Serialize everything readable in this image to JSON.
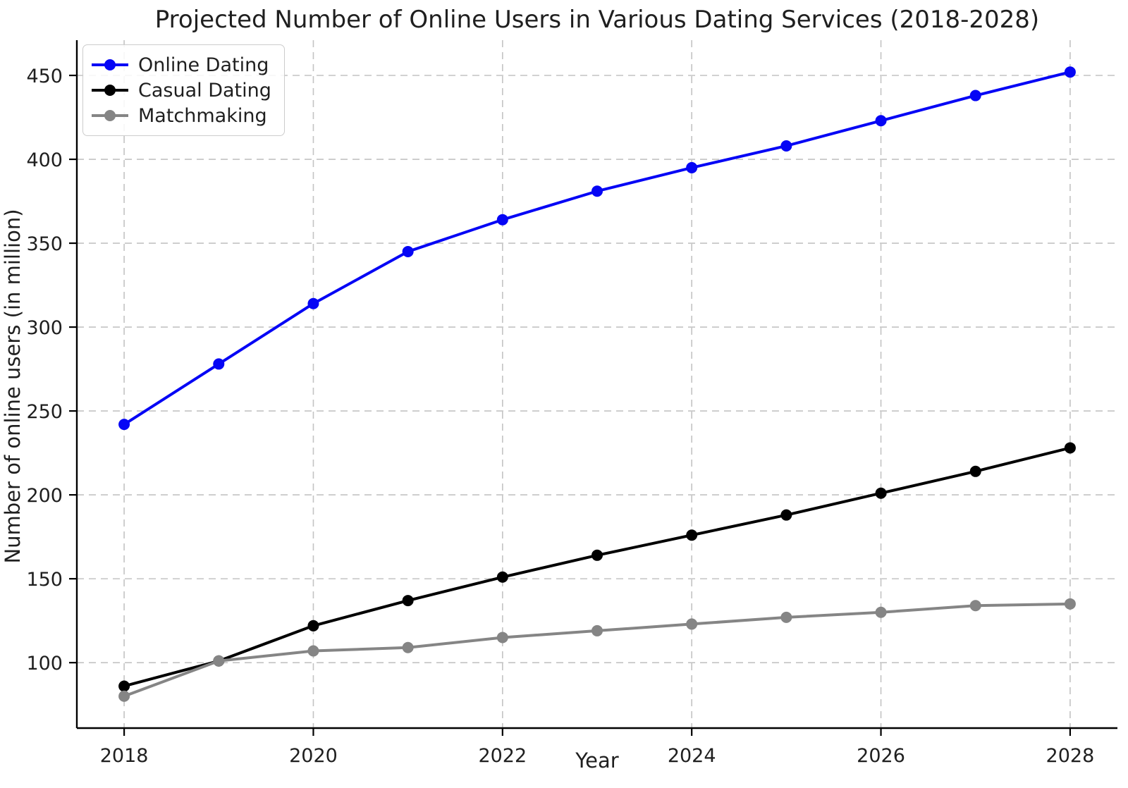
{
  "chart_data": {
    "type": "line",
    "title": "Projected Number of Online Users in Various Dating Services (2018-2028)",
    "xlabel": "Year",
    "ylabel": "Number of online users (in million)",
    "x": [
      2018,
      2019,
      2020,
      2021,
      2022,
      2023,
      2024,
      2025,
      2026,
      2027,
      2028
    ],
    "series": [
      {
        "name": "Online Dating",
        "color": "#0505f5",
        "values": [
          242,
          278,
          314,
          345,
          364,
          381,
          395,
          408,
          423,
          438,
          452
        ]
      },
      {
        "name": "Casual Dating",
        "color": "#000000",
        "values": [
          86,
          101,
          122,
          137,
          151,
          164,
          176,
          188,
          201,
          214,
          228
        ]
      },
      {
        "name": "Matchmaking",
        "color": "#858585",
        "values": [
          80,
          101,
          107,
          109,
          115,
          119,
          123,
          127,
          130,
          134,
          135
        ]
      }
    ],
    "xticks": [
      2018,
      2020,
      2022,
      2024,
      2026,
      2028
    ],
    "yticks": [
      100,
      150,
      200,
      250,
      300,
      350,
      400,
      450
    ],
    "xlim": [
      2017.5,
      2028.5
    ],
    "ylim": [
      61,
      471
    ],
    "grid": true,
    "grid_style": "dashed",
    "grid_color": "#c3c3c3",
    "legend_position": "upper left",
    "marker": "circle",
    "line_width": 4,
    "marker_radius": 8
  }
}
